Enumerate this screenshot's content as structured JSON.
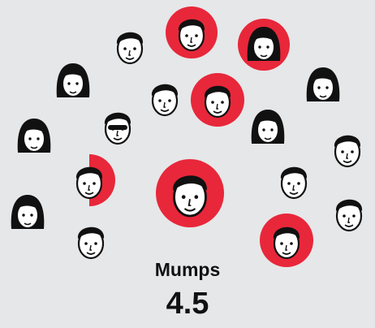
{
  "disease": "Mumps",
  "value": 4.5
}
